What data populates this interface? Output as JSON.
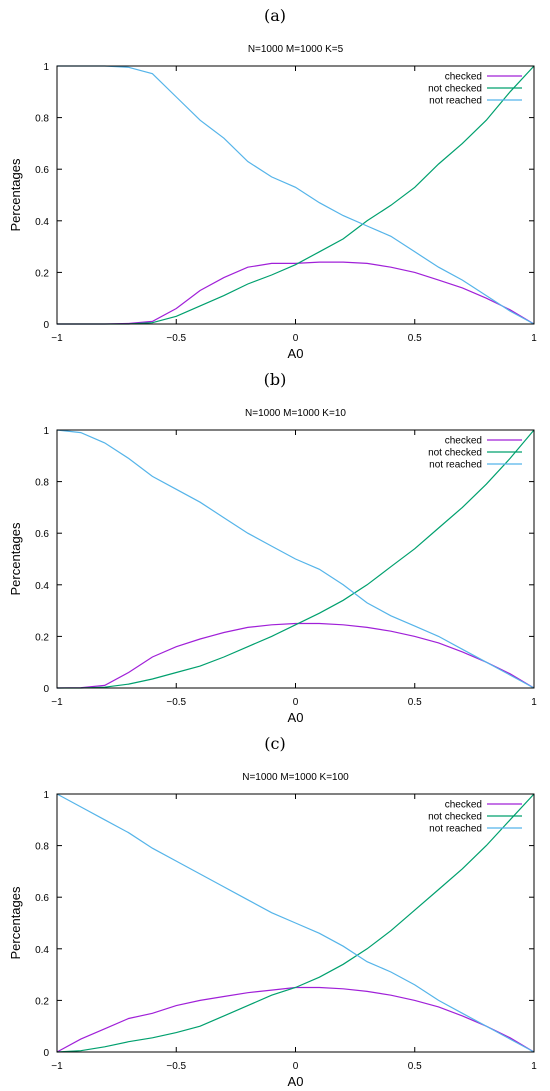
{
  "chart_data": [
    {
      "panel_label": "(a)",
      "type": "line",
      "title": "N=1000 M=1000 K=5",
      "xlabel": "A0",
      "ylabel": "Percentages",
      "xlim": [
        -1,
        1
      ],
      "ylim": [
        0,
        1
      ],
      "xticks": [
        -1,
        -0.5,
        0,
        0.5,
        1
      ],
      "xtick_labels": [
        "-1",
        "-0.5",
        "0",
        "0.5",
        "1"
      ],
      "yticks": [
        0,
        0.2,
        0.4,
        0.6,
        0.8,
        1
      ],
      "ytick_labels": [
        "0",
        "0.2",
        "0.4",
        "0.6",
        "0.8",
        "1"
      ],
      "grid": false,
      "legend_position": "top-right",
      "x": [
        -1,
        -0.9,
        -0.8,
        -0.7,
        -0.6,
        -0.5,
        -0.4,
        -0.3,
        -0.2,
        -0.1,
        0,
        0.1,
        0.2,
        0.3,
        0.4,
        0.5,
        0.6,
        0.7,
        0.8,
        0.9,
        1
      ],
      "series": [
        {
          "name": "checked",
          "color": "#a020d8",
          "values": [
            0,
            0,
            0,
            0.002,
            0.01,
            0.06,
            0.13,
            0.18,
            0.22,
            0.235,
            0.235,
            0.24,
            0.24,
            0.235,
            0.22,
            0.2,
            0.17,
            0.14,
            0.1,
            0.055,
            0
          ]
        },
        {
          "name": "not checked",
          "color": "#00a06e",
          "values": [
            0,
            0,
            0,
            0,
            0.005,
            0.03,
            0.07,
            0.11,
            0.155,
            0.19,
            0.23,
            0.28,
            0.33,
            0.4,
            0.46,
            0.53,
            0.62,
            0.7,
            0.79,
            0.9,
            1
          ]
        },
        {
          "name": "not reached",
          "color": "#55b4e9",
          "values": [
            1,
            1,
            1,
            0.995,
            0.97,
            0.88,
            0.79,
            0.72,
            0.63,
            0.57,
            0.53,
            0.47,
            0.42,
            0.38,
            0.34,
            0.28,
            0.22,
            0.17,
            0.11,
            0.05,
            0
          ]
        }
      ]
    },
    {
      "panel_label": "(b)",
      "type": "line",
      "title": "N=1000 M=1000 K=10",
      "xlabel": "A0",
      "ylabel": "Percentages",
      "xlim": [
        -1,
        1
      ],
      "ylim": [
        0,
        1
      ],
      "xticks": [
        -1,
        -0.5,
        0,
        0.5,
        1
      ],
      "xtick_labels": [
        "-1",
        "-0.5",
        "0",
        "0.5",
        "1"
      ],
      "yticks": [
        0,
        0.2,
        0.4,
        0.6,
        0.8,
        1
      ],
      "ytick_labels": [
        "0",
        "0.2",
        "0.4",
        "0.6",
        "0.8",
        "1"
      ],
      "grid": false,
      "legend_position": "top-right",
      "x": [
        -1,
        -0.9,
        -0.8,
        -0.7,
        -0.6,
        -0.5,
        -0.4,
        -0.3,
        -0.2,
        -0.1,
        0,
        0.1,
        0.2,
        0.3,
        0.4,
        0.5,
        0.6,
        0.7,
        0.8,
        0.9,
        1
      ],
      "series": [
        {
          "name": "checked",
          "color": "#a020d8",
          "values": [
            0,
            0.001,
            0.01,
            0.06,
            0.12,
            0.16,
            0.19,
            0.215,
            0.235,
            0.245,
            0.25,
            0.25,
            0.245,
            0.235,
            0.22,
            0.2,
            0.175,
            0.14,
            0.1,
            0.055,
            0
          ]
        },
        {
          "name": "not checked",
          "color": "#00a06e",
          "values": [
            0,
            0,
            0.003,
            0.015,
            0.035,
            0.06,
            0.085,
            0.12,
            0.16,
            0.2,
            0.245,
            0.29,
            0.34,
            0.4,
            0.47,
            0.54,
            0.62,
            0.7,
            0.79,
            0.89,
            1
          ]
        },
        {
          "name": "not reached",
          "color": "#55b4e9",
          "values": [
            1,
            0.99,
            0.95,
            0.89,
            0.82,
            0.77,
            0.72,
            0.66,
            0.6,
            0.55,
            0.5,
            0.46,
            0.4,
            0.33,
            0.28,
            0.24,
            0.2,
            0.15,
            0.1,
            0.05,
            0
          ]
        }
      ]
    },
    {
      "panel_label": "(c)",
      "type": "line",
      "title": "N=1000 M=1000 K=100",
      "xlabel": "A0",
      "ylabel": "Percentages",
      "xlim": [
        -1,
        1
      ],
      "ylim": [
        0,
        1
      ],
      "xticks": [
        -1,
        -0.5,
        0,
        0.5,
        1
      ],
      "xtick_labels": [
        "-1",
        "-0.5",
        "0",
        "0.5",
        "1"
      ],
      "yticks": [
        0,
        0.2,
        0.4,
        0.6,
        0.8,
        1
      ],
      "ytick_labels": [
        "0",
        "0.2",
        "0.4",
        "0.6",
        "0.8",
        "1"
      ],
      "grid": false,
      "legend_position": "top-right",
      "x": [
        -1,
        -0.9,
        -0.8,
        -0.7,
        -0.6,
        -0.5,
        -0.4,
        -0.3,
        -0.2,
        -0.1,
        0,
        0.1,
        0.2,
        0.3,
        0.4,
        0.5,
        0.6,
        0.7,
        0.8,
        0.9,
        1
      ],
      "series": [
        {
          "name": "checked",
          "color": "#a020d8",
          "values": [
            0,
            0.05,
            0.09,
            0.13,
            0.15,
            0.18,
            0.2,
            0.215,
            0.23,
            0.24,
            0.25,
            0.25,
            0.245,
            0.235,
            0.22,
            0.2,
            0.175,
            0.14,
            0.1,
            0.055,
            0
          ]
        },
        {
          "name": "not checked",
          "color": "#00a06e",
          "values": [
            0,
            0.005,
            0.02,
            0.04,
            0.055,
            0.075,
            0.1,
            0.14,
            0.18,
            0.22,
            0.25,
            0.29,
            0.34,
            0.4,
            0.47,
            0.55,
            0.63,
            0.71,
            0.8,
            0.9,
            1
          ]
        },
        {
          "name": "not reached",
          "color": "#55b4e9",
          "values": [
            1,
            0.95,
            0.9,
            0.85,
            0.79,
            0.74,
            0.69,
            0.64,
            0.59,
            0.54,
            0.5,
            0.46,
            0.41,
            0.35,
            0.31,
            0.26,
            0.2,
            0.15,
            0.1,
            0.05,
            0
          ]
        }
      ]
    }
  ]
}
